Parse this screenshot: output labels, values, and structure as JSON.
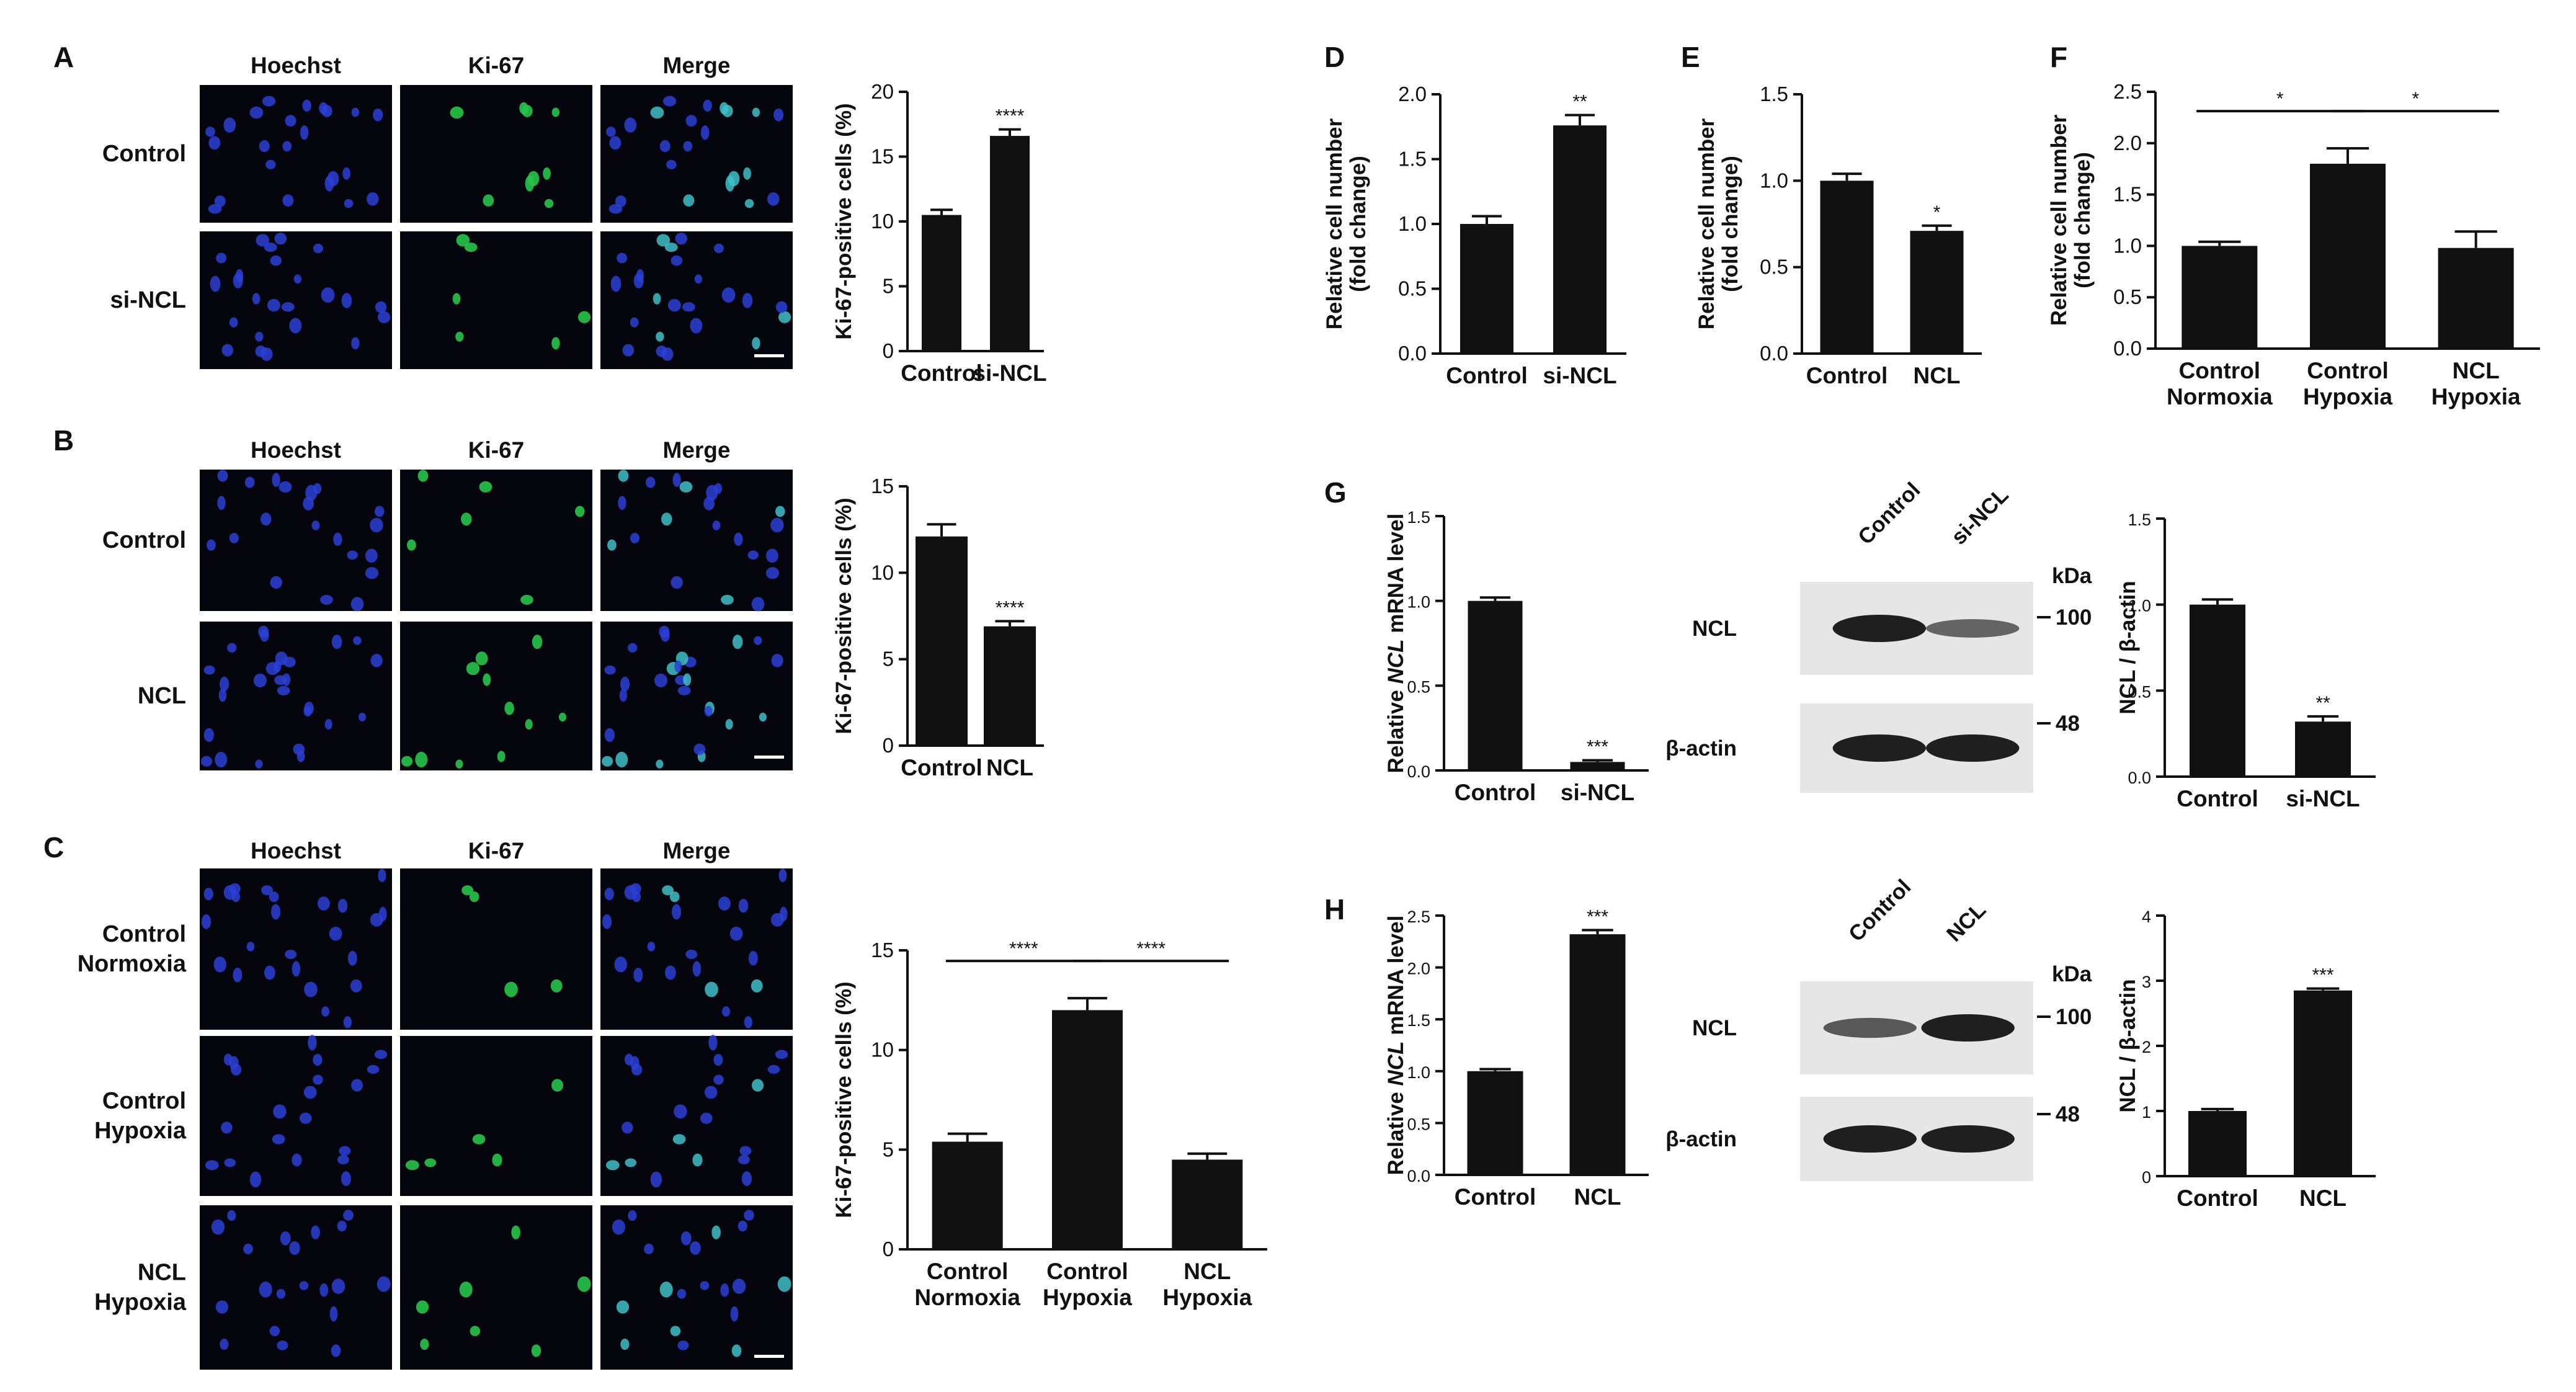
{
  "panels": {
    "A": {
      "label": "A",
      "columns": [
        "Hoechst",
        "Ki-67",
        "Merge"
      ],
      "rows": [
        "Control",
        "si-NCL"
      ]
    },
    "B": {
      "label": "B",
      "columns": [
        "Hoechst",
        "Ki-67",
        "Merge"
      ],
      "rows": [
        "Control",
        "NCL"
      ]
    },
    "C": {
      "label": "C",
      "columns": [
        "Hoechst",
        "Ki-67",
        "Merge"
      ],
      "rows": [
        "Control\nNormoxia",
        "Control\nHypoxia",
        "NCL\nHypoxia"
      ]
    },
    "D": {
      "label": "D"
    },
    "E": {
      "label": "E"
    },
    "F": {
      "label": "F"
    },
    "G": {
      "label": "G",
      "blot_lanes": [
        "Control",
        "si-NCL"
      ],
      "blot_rows": [
        "NCL",
        "β-actin"
      ],
      "kda_label": "kDa",
      "markers": [
        "100",
        "48"
      ]
    },
    "H": {
      "label": "H",
      "blot_lanes": [
        "Control",
        "NCL"
      ],
      "blot_rows": [
        "NCL",
        "β-actin"
      ],
      "kda_label": "kDa",
      "markers": [
        "100",
        "48"
      ]
    }
  },
  "colors": {
    "bar": "#111111",
    "hoechst": "#2b3fd6",
    "ki67": "#27c44a",
    "merge": "#3fc0c8"
  },
  "chart_data": [
    {
      "id": "A",
      "type": "bar",
      "categories": [
        "Control",
        "si-NCL"
      ],
      "values": [
        10.5,
        16.6
      ],
      "errors": [
        0.4,
        0.5
      ],
      "ylabel": "Ki-67-positive cells (%)",
      "ylim": [
        0,
        20
      ],
      "yticks": [
        0,
        5,
        10,
        15,
        20
      ],
      "annotations": [
        "",
        "****"
      ]
    },
    {
      "id": "B",
      "type": "bar",
      "categories": [
        "Control",
        "NCL"
      ],
      "values": [
        12.1,
        6.9
      ],
      "errors": [
        0.7,
        0.3
      ],
      "ylabel": "Ki-67-positive cells (%)",
      "ylim": [
        0,
        15
      ],
      "yticks": [
        0,
        5,
        10,
        15
      ],
      "annotations": [
        "",
        "****"
      ]
    },
    {
      "id": "C",
      "type": "bar",
      "categories": [
        "Control\nNormoxia",
        "Control\nHypoxia",
        "NCL\nHypoxia"
      ],
      "values": [
        5.4,
        12.0,
        4.5
      ],
      "errors": [
        0.4,
        0.6,
        0.3
      ],
      "ylabel": "Ki-67-positive cells (%)",
      "ylim": [
        0,
        15
      ],
      "yticks": [
        0,
        5,
        10,
        15
      ],
      "brackets": [
        {
          "from": 0,
          "to": 1,
          "text": "****"
        },
        {
          "from": 1,
          "to": 2,
          "text": "****"
        }
      ]
    },
    {
      "id": "D",
      "type": "bar",
      "categories": [
        "Control",
        "si-NCL"
      ],
      "values": [
        1.0,
        1.76
      ],
      "errors": [
        0.06,
        0.08
      ],
      "ylabel": "Relative cell number\n(fold change)",
      "ylim": [
        0,
        2.0
      ],
      "yticks": [
        0.0,
        0.5,
        1.0,
        1.5,
        2.0
      ],
      "annotations": [
        "",
        "**"
      ]
    },
    {
      "id": "E",
      "type": "bar",
      "categories": [
        "Control",
        "NCL"
      ],
      "values": [
        1.0,
        0.71
      ],
      "errors": [
        0.04,
        0.03
      ],
      "ylabel": "Relative cell number\n(fold change)",
      "ylim": [
        0,
        1.5
      ],
      "yticks": [
        0.0,
        0.5,
        1.0,
        1.5
      ],
      "annotations": [
        "",
        "*"
      ]
    },
    {
      "id": "F",
      "type": "bar",
      "categories": [
        "Control\nNormoxia",
        "Control\nHypoxia",
        "NCL\nHypoxia"
      ],
      "values": [
        1.0,
        1.8,
        0.98
      ],
      "errors": [
        0.04,
        0.15,
        0.16
      ],
      "ylabel": "Relative cell number\n(fold change)",
      "ylim": [
        0,
        2.5
      ],
      "yticks": [
        0.0,
        0.5,
        1.0,
        1.5,
        2.0,
        2.5
      ],
      "brackets": [
        {
          "from": 0,
          "to": 1,
          "text": "*"
        },
        {
          "from": 1,
          "to": 2,
          "text": "*"
        }
      ]
    },
    {
      "id": "G1",
      "type": "bar",
      "categories": [
        "Control",
        "si-NCL"
      ],
      "values": [
        1.0,
        0.05
      ],
      "errors": [
        0.02,
        0.01
      ],
      "ylabel": "Relative NCL mRNA level",
      "ylim": [
        0,
        1.5
      ],
      "yticks": [
        0.0,
        0.5,
        1.0,
        1.5
      ],
      "annotations": [
        "",
        "***"
      ]
    },
    {
      "id": "G2",
      "type": "bar",
      "categories": [
        "Control",
        "si-NCL"
      ],
      "values": [
        1.0,
        0.32
      ],
      "errors": [
        0.03,
        0.03
      ],
      "ylabel": "NCL / β-actin",
      "ylim": [
        0,
        1.5
      ],
      "yticks": [
        0.0,
        0.5,
        1.0,
        1.5
      ],
      "annotations": [
        "",
        "**"
      ]
    },
    {
      "id": "H1",
      "type": "bar",
      "categories": [
        "Control",
        "NCL"
      ],
      "values": [
        1.0,
        2.32
      ],
      "errors": [
        0.02,
        0.04
      ],
      "ylabel": "Relative NCL mRNA level",
      "ylim": [
        0,
        2.5
      ],
      "yticks": [
        0.0,
        0.5,
        1.0,
        1.5,
        2.0,
        2.5
      ],
      "annotations": [
        "",
        "***"
      ]
    },
    {
      "id": "H2",
      "type": "bar",
      "categories": [
        "Control",
        "NCL"
      ],
      "values": [
        1.0,
        2.85
      ],
      "errors": [
        0.03,
        0.03
      ],
      "ylabel": "NCL / β-actin",
      "ylim": [
        0,
        4
      ],
      "yticks": [
        0,
        1,
        2,
        3,
        4
      ],
      "annotations": [
        "",
        "***"
      ]
    }
  ]
}
